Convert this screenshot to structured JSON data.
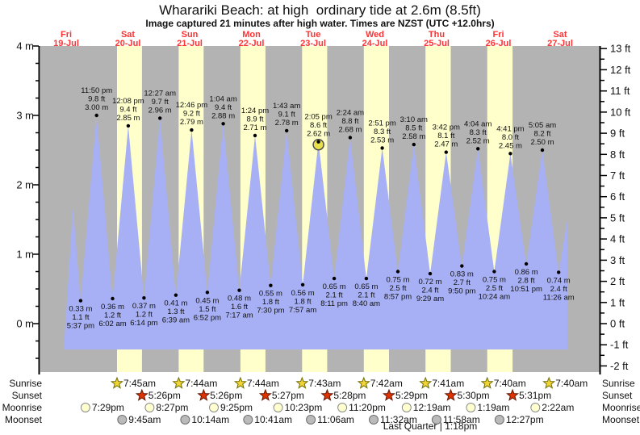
{
  "header": {
    "title": "Wharariki Beach: at high  ordinary tide at 2.6m (8.5ft)",
    "subtitle": "Image captured 21 minutes after high water. Times are NZST (UTC +12.0hrs)"
  },
  "colors": {
    "plot_bg": "#b3b3b3",
    "daylight_band": "#ffffcc",
    "tide_fill": "#a7b0f4",
    "day_label": "#ff3333",
    "text": "#111111",
    "axis": "#000000",
    "dot": "#000000",
    "marker_fill": "#e8e04a",
    "marker_stroke": "#4d4d4d",
    "sunrise_star_fill": "#f2d338",
    "sunrise_star_stroke": "#6e6e00",
    "sunset_star_fill": "#e03400",
    "sunset_star_stroke": "#661400",
    "moonrise_fill": "#ffffd0",
    "moonrise_stroke": "#8a8a8a",
    "moonset_fill": "#bababa",
    "moonset_stroke": "#6e6e6e"
  },
  "chart_data": {
    "type": "area",
    "title": "Wharariki Beach: at high  ordinary tide at 2.6m (8.5ft)",
    "subtitle": "Image captured 21 minutes after high water. Times are NZST (UTC +12.0hrs)",
    "days": [
      {
        "weekday": "Fri",
        "date": "19-Jul"
      },
      {
        "weekday": "Sat",
        "date": "20-Jul"
      },
      {
        "weekday": "Sun",
        "date": "21-Jul"
      },
      {
        "weekday": "Mon",
        "date": "22-Jul"
      },
      {
        "weekday": "Tue",
        "date": "23-Jul"
      },
      {
        "weekday": "Wed",
        "date": "24-Jul"
      },
      {
        "weekday": "Thu",
        "date": "25-Jul"
      },
      {
        "weekday": "Fri",
        "date": "26-Jul"
      },
      {
        "weekday": "Sat",
        "date": "27-Jul"
      }
    ],
    "y_axis_left": {
      "unit": "m",
      "ticks": [
        0,
        1,
        2,
        3,
        4
      ]
    },
    "y_axis_right": {
      "unit": "ft",
      "ticks": [
        -2,
        -1,
        0,
        1,
        2,
        3,
        4,
        5,
        6,
        7,
        8,
        9,
        10,
        11,
        12,
        13
      ]
    },
    "series_start": {
      "day": 0,
      "time": "2:40 pm",
      "m": "1.67"
    },
    "series_end": {
      "day": 8,
      "time": "2:50 pm",
      "m": "1.49"
    },
    "tide_events": [
      {
        "kind": "low",
        "day": 0,
        "time": "5:37 pm",
        "m": "0.33",
        "ft": "1.1"
      },
      {
        "kind": "high",
        "day": 0,
        "time": "11:50 pm",
        "m": "3.00",
        "ft": "9.8"
      },
      {
        "kind": "low",
        "day": 1,
        "time": "6:02 am",
        "m": "0.36",
        "ft": "1.2"
      },
      {
        "kind": "high",
        "day": 1,
        "time": "12:08 pm",
        "m": "2.85",
        "ft": "9.4"
      },
      {
        "kind": "low",
        "day": 1,
        "time": "6:14 pm",
        "m": "0.37",
        "ft": "1.2"
      },
      {
        "kind": "high",
        "day": 2,
        "time": "12:27 am",
        "m": "2.96",
        "ft": "9.7"
      },
      {
        "kind": "low",
        "day": 2,
        "time": "6:39 am",
        "m": "0.41",
        "ft": "1.3"
      },
      {
        "kind": "high",
        "day": 2,
        "time": "12:46 pm",
        "m": "2.79",
        "ft": "9.2"
      },
      {
        "kind": "low",
        "day": 2,
        "time": "6:52 pm",
        "m": "0.45",
        "ft": "1.5"
      },
      {
        "kind": "high",
        "day": 3,
        "time": "1:04 am",
        "m": "2.88",
        "ft": "9.4"
      },
      {
        "kind": "low",
        "day": 3,
        "time": "7:17 am",
        "m": "0.48",
        "ft": "1.6"
      },
      {
        "kind": "high",
        "day": 3,
        "time": "1:24 pm",
        "m": "2.71",
        "ft": "8.9"
      },
      {
        "kind": "low",
        "day": 3,
        "time": "7:30 pm",
        "m": "0.55",
        "ft": "1.8"
      },
      {
        "kind": "high",
        "day": 4,
        "time": "1:43 am",
        "m": "2.78",
        "ft": "9.1"
      },
      {
        "kind": "low",
        "day": 4,
        "time": "7:57 am",
        "m": "0.56",
        "ft": "1.8"
      },
      {
        "kind": "high",
        "day": 4,
        "time": "2:05 pm",
        "m": "2.62",
        "ft": "8.6"
      },
      {
        "kind": "low",
        "day": 4,
        "time": "8:11 pm",
        "m": "0.65",
        "ft": "2.1"
      },
      {
        "kind": "high",
        "day": 5,
        "time": "2:24 am",
        "m": "2.68",
        "ft": "8.8"
      },
      {
        "kind": "low",
        "day": 5,
        "time": "8:40 am",
        "m": "0.65",
        "ft": "2.1"
      },
      {
        "kind": "high",
        "day": 5,
        "time": "2:51 pm",
        "m": "2.53",
        "ft": "8.3"
      },
      {
        "kind": "low",
        "day": 5,
        "time": "8:57 pm",
        "m": "0.75",
        "ft": "2.5"
      },
      {
        "kind": "high",
        "day": 6,
        "time": "3:10 am",
        "m": "2.58",
        "ft": "8.5"
      },
      {
        "kind": "low",
        "day": 6,
        "time": "9:29 am",
        "m": "0.72",
        "ft": "2.4"
      },
      {
        "kind": "high",
        "day": 6,
        "time": "3:42 pm",
        "m": "2.47",
        "ft": "8.1"
      },
      {
        "kind": "low",
        "day": 6,
        "time": "9:50 pm",
        "m": "0.83",
        "ft": "2.7"
      },
      {
        "kind": "high",
        "day": 7,
        "time": "4:04 am",
        "m": "2.52",
        "ft": "8.3"
      },
      {
        "kind": "low",
        "day": 7,
        "time": "10:24 am",
        "m": "0.75",
        "ft": "2.5"
      },
      {
        "kind": "high",
        "day": 7,
        "time": "4:41 pm",
        "m": "2.45",
        "ft": "8.0"
      },
      {
        "kind": "low",
        "day": 7,
        "time": "10:51 pm",
        "m": "0.86",
        "ft": "2.8"
      },
      {
        "kind": "high",
        "day": 8,
        "time": "5:05 am",
        "m": "2.50",
        "ft": "8.2"
      },
      {
        "kind": "low",
        "day": 8,
        "time": "11:26 am",
        "m": "0.74",
        "ft": "2.4"
      }
    ],
    "current_marker_event_index": 15,
    "sun_moon": {
      "row_labels": [
        "Sunrise",
        "Sunset",
        "Moonrise",
        "Moonset"
      ],
      "sunrise": [
        {
          "day": 1,
          "time": "7:45am"
        },
        {
          "day": 2,
          "time": "7:44am"
        },
        {
          "day": 3,
          "time": "7:44am"
        },
        {
          "day": 4,
          "time": "7:43am"
        },
        {
          "day": 5,
          "time": "7:42am"
        },
        {
          "day": 6,
          "time": "7:41am"
        },
        {
          "day": 7,
          "time": "7:40am"
        },
        {
          "day": 8,
          "time": "7:40am"
        }
      ],
      "sunset": [
        {
          "day": 1,
          "time": "5:26pm"
        },
        {
          "day": 2,
          "time": "5:26pm"
        },
        {
          "day": 3,
          "time": "5:27pm"
        },
        {
          "day": 4,
          "time": "5:28pm"
        },
        {
          "day": 5,
          "time": "5:29pm"
        },
        {
          "day": 6,
          "time": "5:30pm"
        },
        {
          "day": 7,
          "time": "5:31pm"
        }
      ],
      "moonrise": [
        {
          "day": 0,
          "time": "7:29pm"
        },
        {
          "day": 1,
          "time": "8:27pm"
        },
        {
          "day": 2,
          "time": "9:25pm"
        },
        {
          "day": 3,
          "time": "10:23pm"
        },
        {
          "day": 4,
          "time": "11:20pm"
        },
        {
          "day": 6,
          "time": "12:19am"
        },
        {
          "day": 7,
          "time": "1:19am"
        },
        {
          "day": 8,
          "time": "2:22am"
        }
      ],
      "moonset": [
        {
          "day": 1,
          "time": "9:45am"
        },
        {
          "day": 2,
          "time": "10:14am"
        },
        {
          "day": 3,
          "time": "10:41am"
        },
        {
          "day": 4,
          "time": "11:06am"
        },
        {
          "day": 5,
          "time": "11:32am"
        },
        {
          "day": 6,
          "time": "11:58am"
        },
        {
          "day": 7,
          "time": "12:27pm"
        }
      ]
    },
    "moon_phase_label": "Last Quarter | 1:18pm"
  }
}
